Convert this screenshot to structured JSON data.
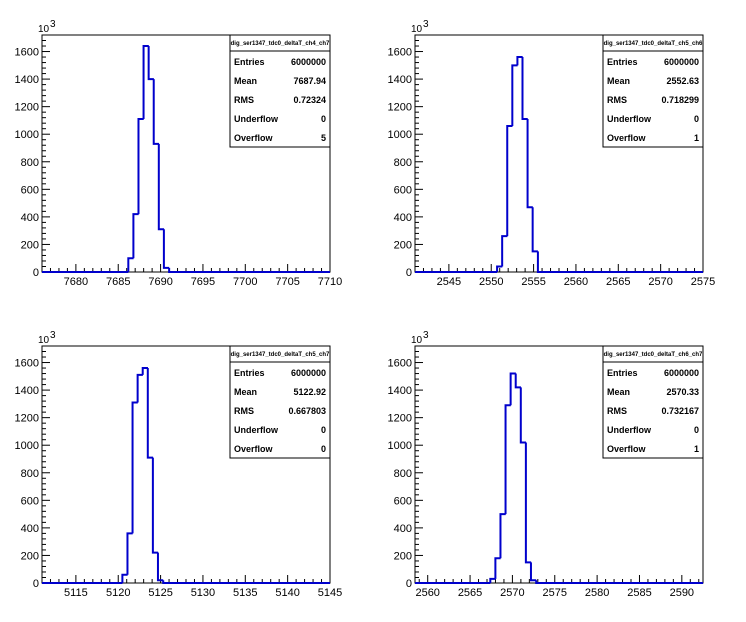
{
  "chart_data": [
    {
      "type": "histogram",
      "xlim": [
        7676,
        7710
      ],
      "ylim": [
        0,
        1720
      ],
      "y_exponent": "10",
      "y_exponent_power": "3",
      "xticks": [
        "7680",
        "7685",
        "7690",
        "7695",
        "7700",
        "7705",
        "7710"
      ],
      "xtick_values": [
        7680,
        7685,
        7690,
        7695,
        7700,
        7705,
        7710
      ],
      "yticks": [
        "0",
        "200",
        "400",
        "600",
        "800",
        "1000",
        "1200",
        "1400",
        "1600"
      ],
      "ytick_values": [
        0,
        200,
        400,
        600,
        800,
        1000,
        1200,
        1400,
        1600
      ],
      "bin_width": 0.62,
      "bins": [
        {
          "x": 7686.5,
          "y": 100
        },
        {
          "x": 7687.1,
          "y": 420
        },
        {
          "x": 7687.7,
          "y": 1110
        },
        {
          "x": 7688.3,
          "y": 1640
        },
        {
          "x": 7688.9,
          "y": 1400
        },
        {
          "x": 7689.5,
          "y": 930
        },
        {
          "x": 7690.1,
          "y": 310
        },
        {
          "x": 7690.7,
          "y": 30
        }
      ],
      "stats": {
        "title": "dig_ser1347_tdc0_deltaT_ch4_ch7",
        "rows": [
          {
            "label": "Entries",
            "value": "6000000"
          },
          {
            "label": "Mean",
            "value": "7687.94"
          },
          {
            "label": "RMS",
            "value": "0.72324"
          },
          {
            "label": "Underflow",
            "value": "0"
          },
          {
            "label": "Overflow",
            "value": "5"
          }
        ]
      }
    },
    {
      "type": "histogram",
      "xlim": [
        2541,
        2575
      ],
      "ylim": [
        0,
        1720
      ],
      "y_exponent": "10",
      "y_exponent_power": "3",
      "xticks": [
        "2545",
        "2550",
        "2555",
        "2560",
        "2565",
        "2570",
        "2575"
      ],
      "xtick_values": [
        2545,
        2550,
        2555,
        2560,
        2565,
        2570,
        2575
      ],
      "yticks": [
        "0",
        "200",
        "400",
        "600",
        "800",
        "1000",
        "1200",
        "1400",
        "1600"
      ],
      "ytick_values": [
        0,
        200,
        400,
        600,
        800,
        1000,
        1200,
        1400,
        1600
      ],
      "bin_width": 0.62,
      "bins": [
        {
          "x": 2551.0,
          "y": 40
        },
        {
          "x": 2551.6,
          "y": 260
        },
        {
          "x": 2552.2,
          "y": 1060
        },
        {
          "x": 2552.8,
          "y": 1500
        },
        {
          "x": 2553.4,
          "y": 1560
        },
        {
          "x": 2554.0,
          "y": 1110
        },
        {
          "x": 2554.6,
          "y": 470
        },
        {
          "x": 2555.2,
          "y": 150
        }
      ],
      "stats": {
        "title": "dig_ser1347_tdc0_deltaT_ch5_ch6",
        "rows": [
          {
            "label": "Entries",
            "value": "6000000"
          },
          {
            "label": "Mean",
            "value": "2552.63"
          },
          {
            "label": "RMS",
            "value": "0.718299"
          },
          {
            "label": "Underflow",
            "value": "0"
          },
          {
            "label": "Overflow",
            "value": "1"
          }
        ]
      }
    },
    {
      "type": "histogram",
      "xlim": [
        5111,
        5145
      ],
      "ylim": [
        0,
        1720
      ],
      "y_exponent": "10",
      "y_exponent_power": "3",
      "xticks": [
        "5115",
        "5120",
        "5125",
        "5130",
        "5135",
        "5140",
        "5145"
      ],
      "xtick_values": [
        5115,
        5120,
        5125,
        5130,
        5135,
        5140,
        5145
      ],
      "yticks": [
        "0",
        "200",
        "400",
        "600",
        "800",
        "1000",
        "1200",
        "1400",
        "1600"
      ],
      "ytick_values": [
        0,
        200,
        400,
        600,
        800,
        1000,
        1200,
        1400,
        1600
      ],
      "bin_width": 0.62,
      "bins": [
        {
          "x": 5120.8,
          "y": 60
        },
        {
          "x": 5121.4,
          "y": 360
        },
        {
          "x": 5122.0,
          "y": 1310
        },
        {
          "x": 5122.6,
          "y": 1510
        },
        {
          "x": 5123.2,
          "y": 1560
        },
        {
          "x": 5123.8,
          "y": 910
        },
        {
          "x": 5124.4,
          "y": 220
        },
        {
          "x": 5125.0,
          "y": 20
        }
      ],
      "stats": {
        "title": "dig_ser1347_tdc0_deltaT_ch5_ch7",
        "rows": [
          {
            "label": "Entries",
            "value": "6000000"
          },
          {
            "label": "Mean",
            "value": "5122.92"
          },
          {
            "label": "RMS",
            "value": "0.667803"
          },
          {
            "label": "Underflow",
            "value": "0"
          },
          {
            "label": "Overflow",
            "value": "0"
          }
        ]
      }
    },
    {
      "type": "histogram",
      "xlim": [
        2558.5,
        2592.5
      ],
      "ylim": [
        0,
        1720
      ],
      "y_exponent": "10",
      "y_exponent_power": "3",
      "xticks": [
        "2560",
        "2565",
        "2570",
        "2575",
        "2580",
        "2585",
        "2590"
      ],
      "xtick_values": [
        2560,
        2565,
        2570,
        2575,
        2580,
        2585,
        2590
      ],
      "yticks": [
        "0",
        "200",
        "400",
        "600",
        "800",
        "1000",
        "1200",
        "1400",
        "1600"
      ],
      "ytick_values": [
        0,
        200,
        400,
        600,
        800,
        1000,
        1200,
        1400,
        1600
      ],
      "bin_width": 0.62,
      "bins": [
        {
          "x": 2567.7,
          "y": 30
        },
        {
          "x": 2568.3,
          "y": 180
        },
        {
          "x": 2568.9,
          "y": 500
        },
        {
          "x": 2569.5,
          "y": 1290
        },
        {
          "x": 2570.1,
          "y": 1520
        },
        {
          "x": 2570.7,
          "y": 1420
        },
        {
          "x": 2571.3,
          "y": 1020
        },
        {
          "x": 2571.9,
          "y": 150
        },
        {
          "x": 2572.5,
          "y": 20
        }
      ],
      "stats": {
        "title": "dig_ser1347_tdc0_deltaT_ch6_ch7",
        "rows": [
          {
            "label": "Entries",
            "value": "6000000"
          },
          {
            "label": "Mean",
            "value": "2570.33"
          },
          {
            "label": "RMS",
            "value": "0.732167"
          },
          {
            "label": "Underflow",
            "value": "0"
          },
          {
            "label": "Overflow",
            "value": "1"
          }
        ]
      }
    }
  ],
  "colors": {
    "histogram_line": "#0000cc",
    "axes": "#000000",
    "background": "#ffffff"
  }
}
